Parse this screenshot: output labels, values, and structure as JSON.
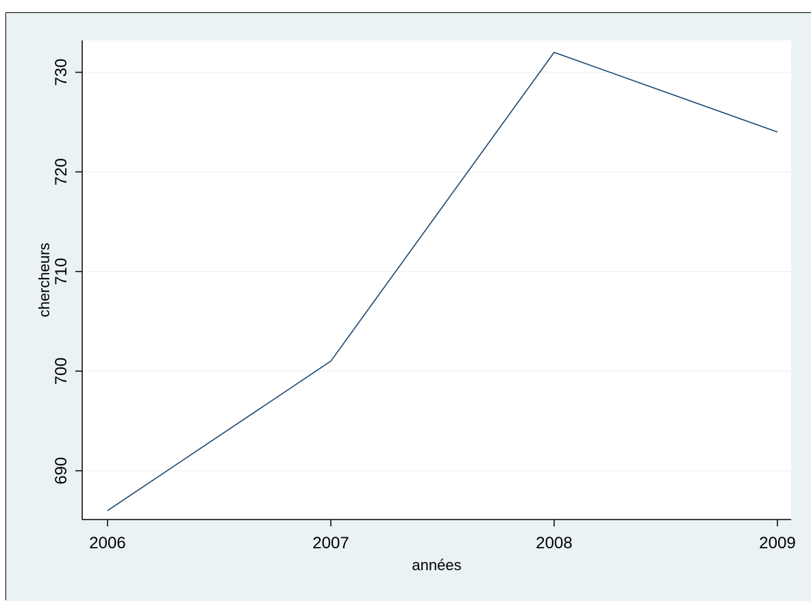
{
  "chart_data": {
    "type": "line",
    "title": "",
    "xlabel": "années",
    "ylabel": "chercheurs",
    "x": [
      2006,
      2007,
      2008,
      2009
    ],
    "series": [
      {
        "values": [
          686,
          701,
          732,
          724
        ]
      }
    ],
    "xticks": [
      "2006",
      "2007",
      "2008",
      "2009"
    ],
    "yticks": [
      "690",
      "700",
      "710",
      "720",
      "730"
    ],
    "xlim": [
      2006,
      2009
    ],
    "ylim": [
      685.1,
      733.2
    ],
    "grid": true,
    "legend": "none",
    "colors": {
      "line": "#1a476f",
      "background": "#eaf2f3",
      "plot_area": "#ffffff",
      "grid": "#eaf2f3"
    }
  }
}
